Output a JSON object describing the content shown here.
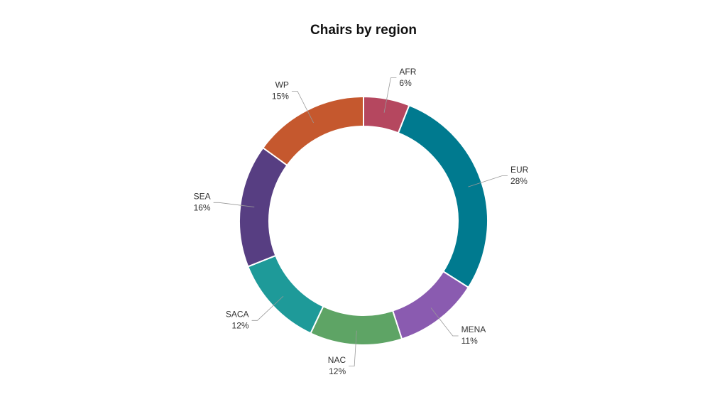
{
  "chart_data": {
    "type": "pie",
    "title": "Chairs by region",
    "categories": [
      "AFR",
      "EUR",
      "MENA",
      "NAC",
      "SACA",
      "SEA",
      "WP"
    ],
    "values": [
      6,
      28,
      11,
      12,
      12,
      16,
      15
    ],
    "value_labels": [
      "6%",
      "28%",
      "11%",
      "12%",
      "12%",
      "16%",
      "15%"
    ],
    "colors": [
      "#b5475f",
      "#007a8f",
      "#8a5bb0",
      "#5ea465",
      "#1e9a99",
      "#573e82",
      "#c5582e"
    ],
    "donut": true
  }
}
